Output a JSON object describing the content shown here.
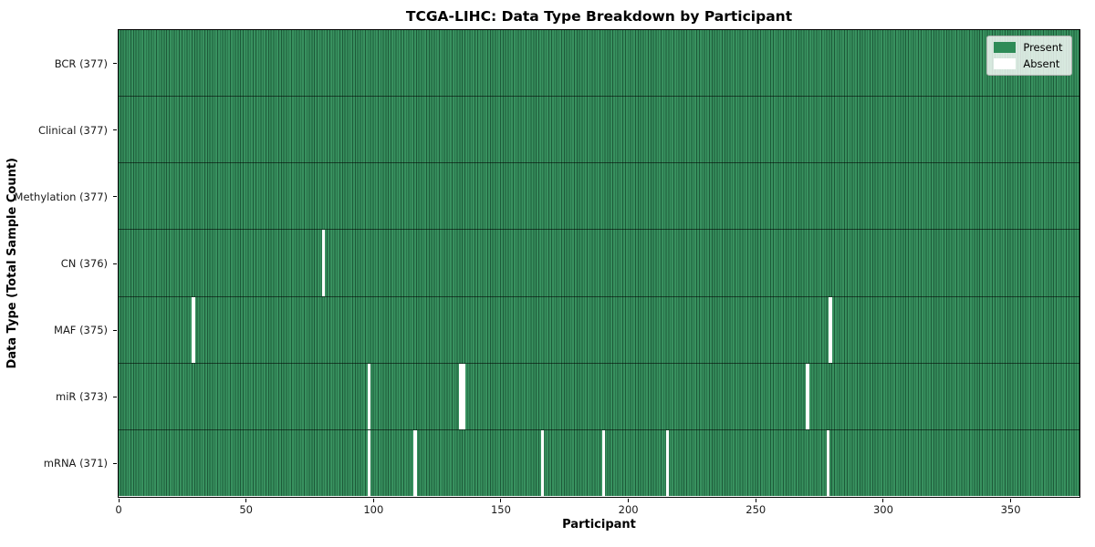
{
  "title": "TCGA-LIHC: Data Type Breakdown by Participant",
  "x_axis": {
    "label": "Participant",
    "ticks": [
      0,
      50,
      100,
      150,
      200,
      250,
      300,
      350
    ],
    "range": [
      0,
      377
    ]
  },
  "y_axis": {
    "label": "Data Type (Total Sample Count)"
  },
  "legend": {
    "items": [
      {
        "label": "Present",
        "color": "#2e8b57"
      },
      {
        "label": "Absent",
        "color": "#ffffff"
      }
    ]
  },
  "chart_data": {
    "type": "heatmap",
    "title": "TCGA-LIHC: Data Type Breakdown by Participant",
    "xlabel": "Participant",
    "ylabel": "Data Type (Total Sample Count)",
    "n_participants": 377,
    "x_range": [
      0,
      377
    ],
    "xticks": [
      0,
      50,
      100,
      150,
      200,
      250,
      300,
      350
    ],
    "legend_entries": [
      "Present",
      "Absent"
    ],
    "legend_position": "upper right",
    "colors": {
      "present": "#2e8b57",
      "present_grid": "#1d5a39",
      "absent": "#ffffff"
    },
    "rows": [
      {
        "label": "BCR (377)",
        "data_type": "BCR",
        "present_count": 377,
        "absent_count": 0,
        "absent_at": []
      },
      {
        "label": "Clinical (377)",
        "data_type": "Clinical",
        "present_count": 377,
        "absent_count": 0,
        "absent_at": []
      },
      {
        "label": "Methylation (377)",
        "data_type": "Methylation",
        "present_count": 377,
        "absent_count": 0,
        "absent_at": []
      },
      {
        "label": "CN (376)",
        "data_type": "CN",
        "present_count": 376,
        "absent_count": 1,
        "absent_at": [
          80
        ]
      },
      {
        "label": "MAF (375)",
        "data_type": "MAF",
        "present_count": 375,
        "absent_count": 2,
        "absent_at": [
          29,
          279
        ]
      },
      {
        "label": "miR (373)",
        "data_type": "miR",
        "present_count": 373,
        "absent_count": 4,
        "absent_at": [
          98,
          134,
          135,
          270
        ]
      },
      {
        "label": "mRNA (371)",
        "data_type": "mRNA",
        "present_count": 371,
        "absent_count": 6,
        "absent_at": [
          98,
          116,
          166,
          190,
          215,
          278
        ]
      }
    ]
  }
}
